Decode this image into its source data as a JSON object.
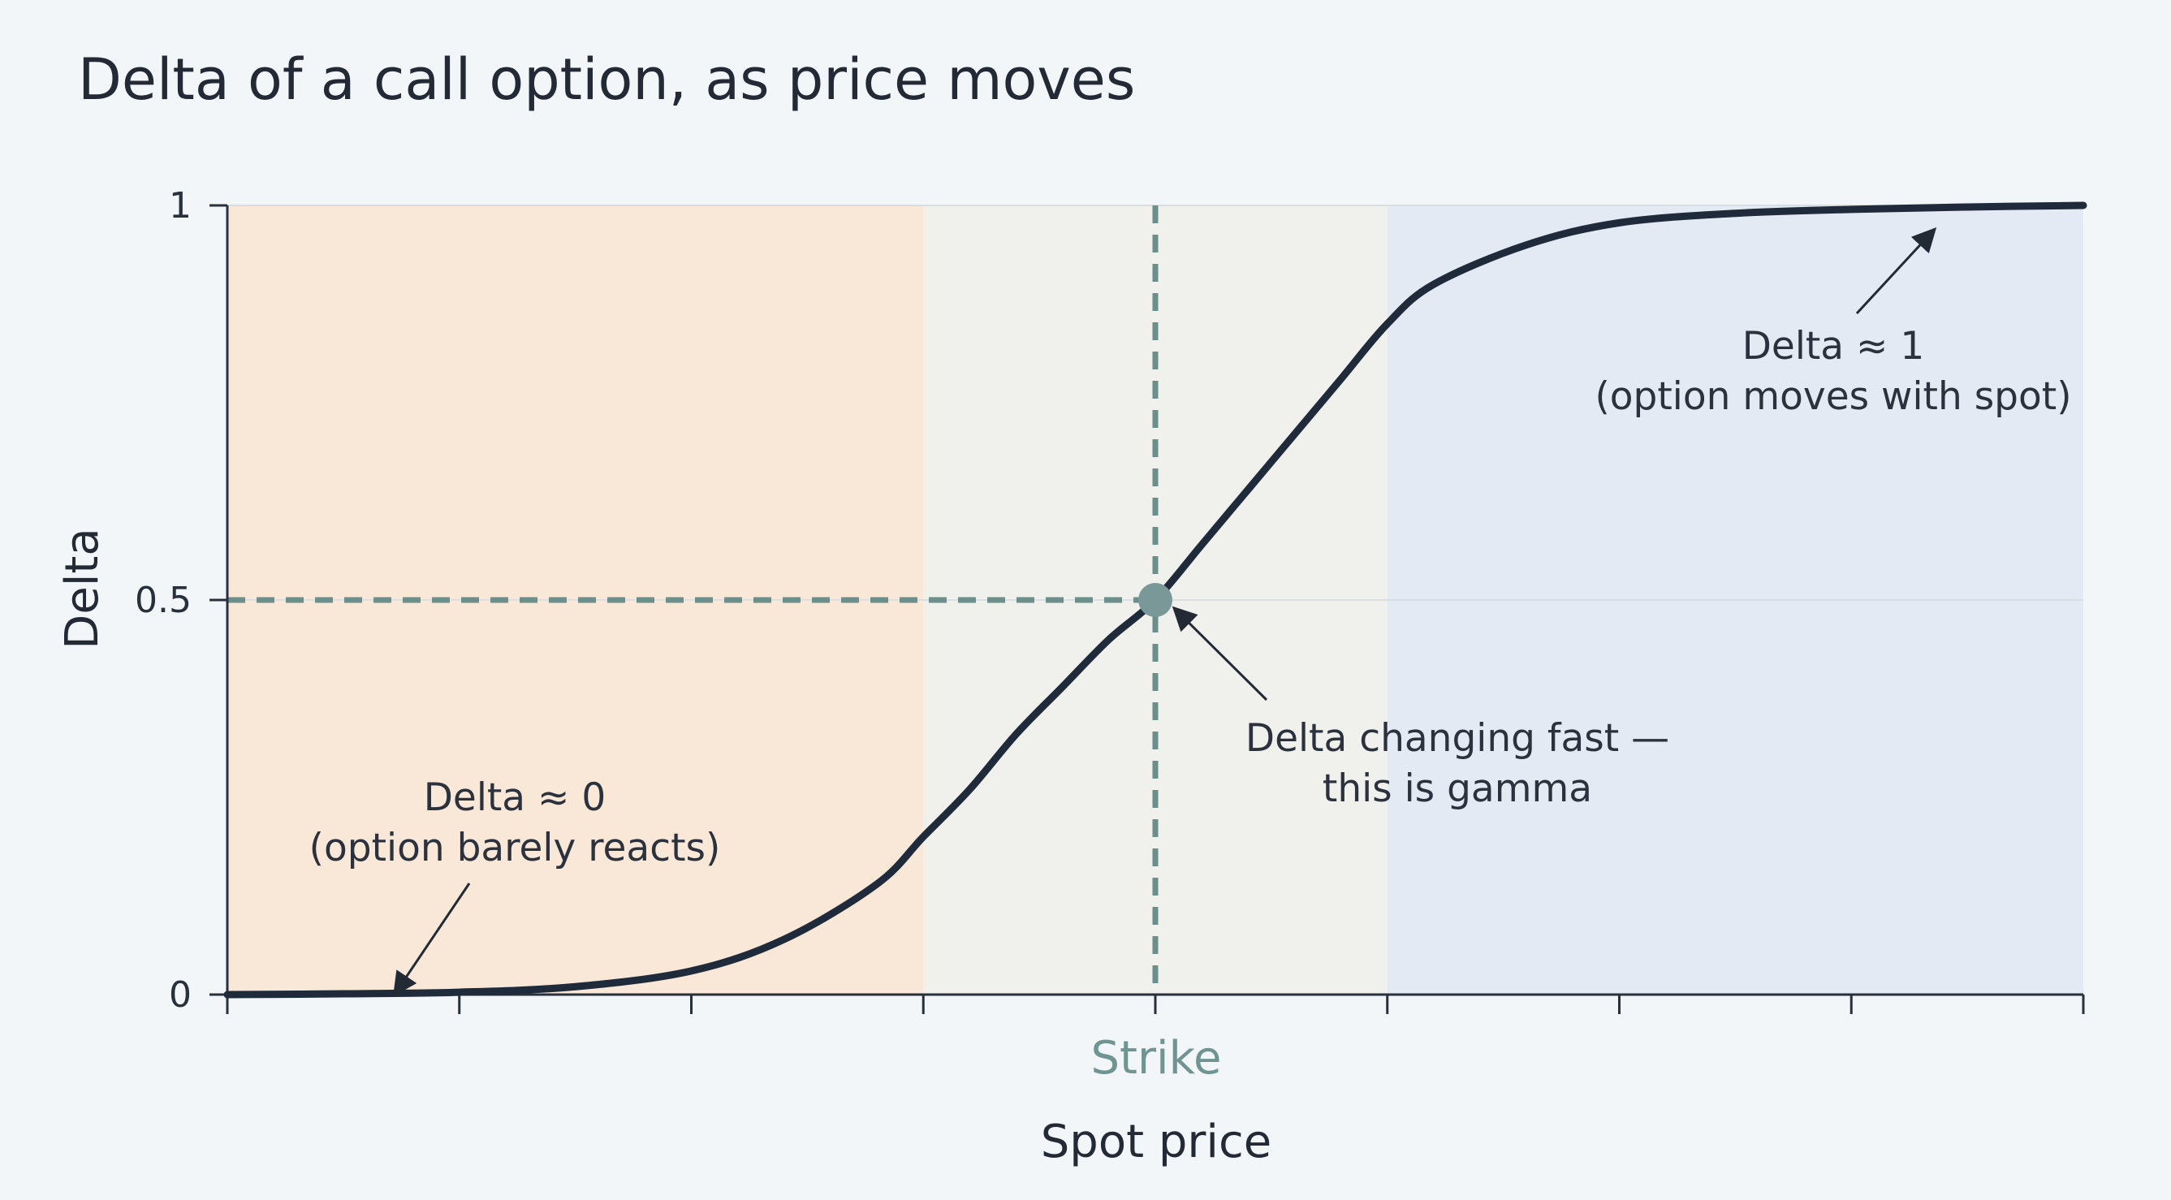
{
  "chart_data": {
    "type": "line",
    "title": "Delta of a call option, as price moves",
    "xlabel": "Spot price",
    "ylabel": "Delta",
    "y_ticks": [
      "0",
      "0.5",
      "1"
    ],
    "y_tick_values": [
      0,
      0.5,
      1
    ],
    "ylim": [
      0,
      1
    ],
    "xlim": [
      -1,
      1
    ],
    "x_tick_count": 9,
    "strike_value": 0,
    "strike_label": "Strike",
    "grid": false,
    "legend": "none",
    "series": [
      {
        "x": [
          -1.0,
          -0.875,
          -0.75,
          -0.625,
          -0.5,
          -0.4,
          -0.3,
          -0.25,
          -0.2,
          -0.15,
          -0.1,
          -0.05,
          0.0,
          0.05,
          0.1,
          0.15,
          0.2,
          0.25,
          0.3,
          0.4,
          0.5,
          0.625,
          0.75,
          0.875,
          1.0
        ],
        "y": [
          0.0,
          0.001,
          0.003,
          0.01,
          0.03,
          0.07,
          0.14,
          0.2,
          0.26,
          0.33,
          0.39,
          0.45,
          0.5,
          0.57,
          0.64,
          0.71,
          0.78,
          0.85,
          0.9,
          0.95,
          0.978,
          0.99,
          0.995,
          0.998,
          1.0
        ]
      }
    ],
    "regions": [
      {
        "x_start": -1.0,
        "x_end": -0.25,
        "color": "#f9e8d7"
      },
      {
        "x_start": -0.25,
        "x_end": 0.25,
        "color": "#f0f1ec"
      },
      {
        "x_start": 0.25,
        "x_end": 1.0,
        "color": "#e3eaf4"
      }
    ],
    "highlight_point": {
      "x": 0,
      "y": 0.5
    },
    "annotations": [
      {
        "name": "delta-zero",
        "lines": [
          "Delta ≈ 0",
          "(option barely reacts)"
        ],
        "target": {
          "x": -0.82,
          "y": 0.0
        }
      },
      {
        "name": "delta-gamma",
        "lines": [
          "Delta changing fast —",
          "this is gamma"
        ],
        "target": {
          "x": 0.02,
          "y": 0.49
        }
      },
      {
        "name": "delta-one",
        "lines": [
          "Delta ≈ 1",
          "(option moves with spot)"
        ],
        "target": {
          "x": 0.84,
          "y": 0.97
        }
      }
    ],
    "colors": {
      "curve": "#1f2a3a",
      "strike": "#6d8f8c",
      "point": "#7a9897",
      "axis": "#28303b"
    }
  }
}
